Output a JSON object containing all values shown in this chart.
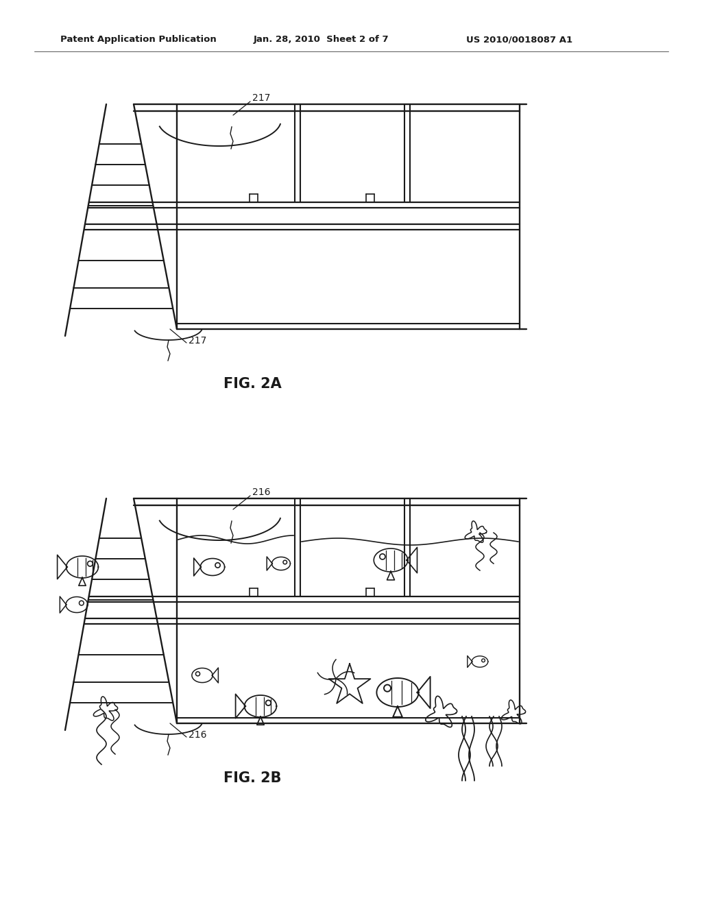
{
  "bg_color": "#ffffff",
  "line_color": "#1a1a1a",
  "header_text_left": "Patent Application Publication",
  "header_text_mid": "Jan. 28, 2010  Sheet 2 of 7",
  "header_text_right": "US 2010/0018087 A1",
  "fig2a_label": "FIG. 2A",
  "fig2b_label": "FIG. 2B",
  "label_217_top": "217",
  "label_217_bot": "217",
  "label_216_top": "216",
  "label_216_bot": "216",
  "header_fontsize": 9.5,
  "label_fontsize": 10,
  "fig_label_fontsize": 15
}
